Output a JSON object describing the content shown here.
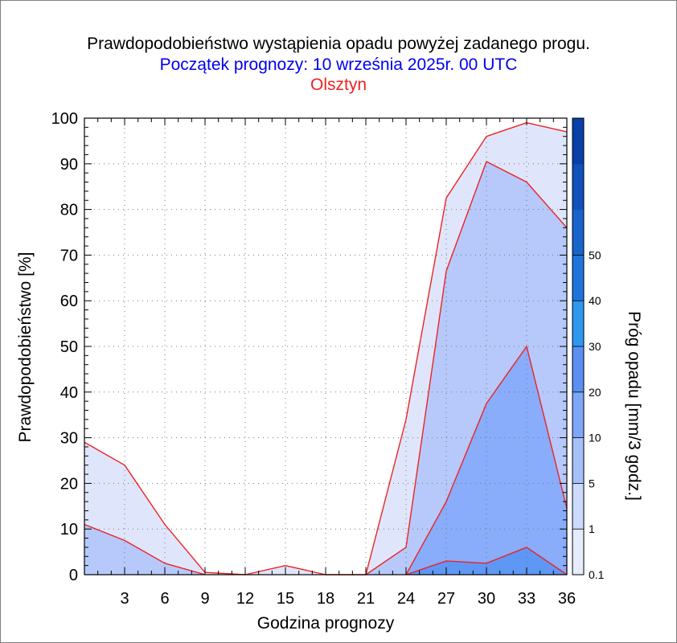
{
  "header": {
    "title": "Prawdopodobieństwo wystąpienia opadu powyżej zadanego progu.",
    "subtitle": "Początek prognozy: 10 września 2025r. 00 UTC",
    "location": "Olsztyn"
  },
  "chart_data": {
    "type": "area",
    "xlabel": "Godzina prognozy",
    "ylabel": "Prawdopodobieństwo [%]",
    "xlim": [
      0,
      36
    ],
    "ylim": [
      0,
      100
    ],
    "x_ticks": [
      3,
      6,
      9,
      12,
      15,
      18,
      21,
      24,
      27,
      30,
      33,
      36
    ],
    "y_ticks": [
      0,
      10,
      20,
      30,
      40,
      50,
      60,
      70,
      80,
      90,
      100
    ],
    "x": [
      0,
      3,
      6,
      9,
      12,
      15,
      18,
      21,
      24,
      27,
      30,
      33,
      36
    ],
    "grid": "dotted",
    "series": [
      {
        "name": "0.1",
        "color": "#dfe6fc",
        "values": [
          29,
          24,
          11,
          0.5,
          0,
          2,
          0,
          0,
          34,
          82.5,
          96,
          99,
          97
        ]
      },
      {
        "name": "1",
        "color": "#b6c9fa",
        "values": [
          11,
          7.5,
          2.5,
          0,
          0,
          0,
          0,
          0,
          6,
          66.5,
          90.5,
          86,
          76
        ]
      },
      {
        "name": "5",
        "color": "#89acfb",
        "values": [
          0,
          0,
          0,
          0,
          0,
          0,
          0,
          0,
          0,
          16,
          37.5,
          50,
          14.5
        ]
      },
      {
        "name": "10",
        "color": "#5f97f5",
        "values": [
          0,
          0,
          0,
          0,
          0,
          0,
          0,
          0,
          0,
          3,
          2.5,
          6,
          0
        ]
      }
    ],
    "line_color": "#ee2222",
    "colorbar": {
      "label": "Próg opadu [mm/3 godz.]",
      "tick_labels": [
        "0.1",
        "1",
        "5",
        "10",
        "20",
        "30",
        "40",
        "50"
      ],
      "colors": [
        "#e6ecfd",
        "#ccdafc",
        "#a6c0fa",
        "#7ea6f7",
        "#5b8ff2",
        "#2e98f0",
        "#1f74dc",
        "#1764cc",
        "#0f52bd",
        "#083fa8"
      ]
    }
  }
}
